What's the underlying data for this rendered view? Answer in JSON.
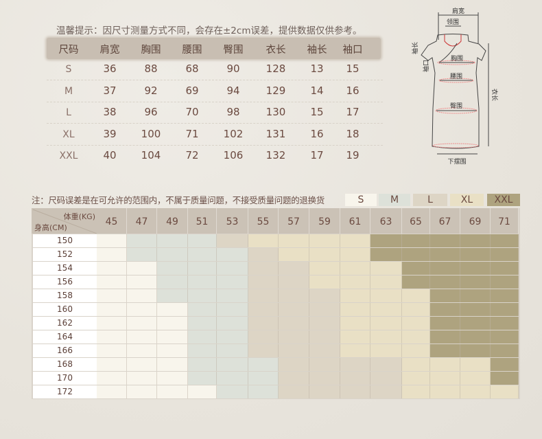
{
  "tip": "温馨提示：因尺寸测量方式不同，会存在±2cm误差，提供数据仅供参考。",
  "size_table": {
    "headers": [
      "尺码",
      "肩宽",
      "胸围",
      "腰围",
      "臀围",
      "衣长",
      "袖长",
      "袖口"
    ],
    "rows": [
      [
        "S",
        "36",
        "88",
        "68",
        "90",
        "128",
        "13",
        "15"
      ],
      [
        "M",
        "37",
        "92",
        "69",
        "94",
        "129",
        "14",
        "16"
      ],
      [
        "L",
        "38",
        "96",
        "70",
        "98",
        "130",
        "15",
        "17"
      ],
      [
        "XL",
        "39",
        "100",
        "71",
        "102",
        "131",
        "16",
        "18"
      ],
      [
        "XXL",
        "40",
        "104",
        "72",
        "106",
        "132",
        "17",
        "19"
      ]
    ]
  },
  "diagram": {
    "labels": {
      "shoulder": "肩宽",
      "collar": "领围",
      "sleeve": "袖长",
      "cuff": "袖口",
      "chest": "胸围",
      "waist": "腰围",
      "hip": "臀围",
      "length": "衣长",
      "hem": "下摆围"
    }
  },
  "note": "注：尺码误差是在可允许的范围内，不属于质量问题，不接受质量问题的退换货",
  "legend": [
    {
      "size": "S",
      "color": "#f8f5ec"
    },
    {
      "size": "M",
      "color": "#dde1d9"
    },
    {
      "size": "L",
      "color": "#ddd5c5"
    },
    {
      "size": "XL",
      "color": "#e9e0c5"
    },
    {
      "size": "XXL",
      "color": "#aea37f"
    }
  ],
  "recommend": {
    "weight_label": "体重(KG)",
    "height_label": "身高(CM)",
    "weights": [
      "45",
      "47",
      "49",
      "51",
      "53",
      "55",
      "57",
      "59",
      "61",
      "63",
      "65",
      "67",
      "69",
      "71"
    ],
    "heights": [
      "150",
      "152",
      "154",
      "156",
      "158",
      "160",
      "162",
      "164",
      "166",
      "168",
      "170",
      "172"
    ],
    "grid": [
      [
        "S",
        "M",
        "M",
        "M",
        "L",
        "XL",
        "XL",
        "XL",
        "XL",
        "XXL",
        "XXL",
        "XXL",
        "XXL",
        "XXL"
      ],
      [
        "S",
        "M",
        "M",
        "M",
        "M",
        "L",
        "XL",
        "XL",
        "XL",
        "XXL",
        "XXL",
        "XXL",
        "XXL",
        "XXL"
      ],
      [
        "S",
        "S",
        "M",
        "M",
        "M",
        "L",
        "L",
        "XL",
        "XL",
        "XL",
        "XXL",
        "XXL",
        "XXL",
        "XXL"
      ],
      [
        "S",
        "S",
        "M",
        "M",
        "M",
        "L",
        "L",
        "XL",
        "XL",
        "XL",
        "XXL",
        "XXL",
        "XXL",
        "XXL"
      ],
      [
        "S",
        "S",
        "M",
        "M",
        "M",
        "L",
        "L",
        "L",
        "XL",
        "XL",
        "XL",
        "XXL",
        "XXL",
        "XXL"
      ],
      [
        "S",
        "S",
        "S",
        "M",
        "M",
        "L",
        "L",
        "L",
        "XL",
        "XL",
        "XL",
        "XXL",
        "XXL",
        "XXL"
      ],
      [
        "S",
        "S",
        "S",
        "M",
        "M",
        "L",
        "L",
        "L",
        "XL",
        "XL",
        "XL",
        "XXL",
        "XXL",
        "XXL"
      ],
      [
        "S",
        "S",
        "S",
        "M",
        "M",
        "L",
        "L",
        "L",
        "XL",
        "XL",
        "XL",
        "XXL",
        "XXL",
        "XXL"
      ],
      [
        "S",
        "S",
        "S",
        "M",
        "M",
        "L",
        "L",
        "L",
        "XL",
        "XL",
        "XL",
        "XXL",
        "XXL",
        "XXL"
      ],
      [
        "S",
        "S",
        "S",
        "M",
        "M",
        "M",
        "L",
        "L",
        "L",
        "L",
        "XL",
        "XL",
        "XL",
        "XXL"
      ],
      [
        "S",
        "S",
        "S",
        "M",
        "M",
        "M",
        "L",
        "L",
        "L",
        "L",
        "XL",
        "XL",
        "XL",
        "XXL"
      ],
      [
        "S",
        "S",
        "S",
        "S",
        "M",
        "M",
        "L",
        "L",
        "L",
        "L",
        "XL",
        "XL",
        "XL",
        "XL"
      ]
    ]
  }
}
